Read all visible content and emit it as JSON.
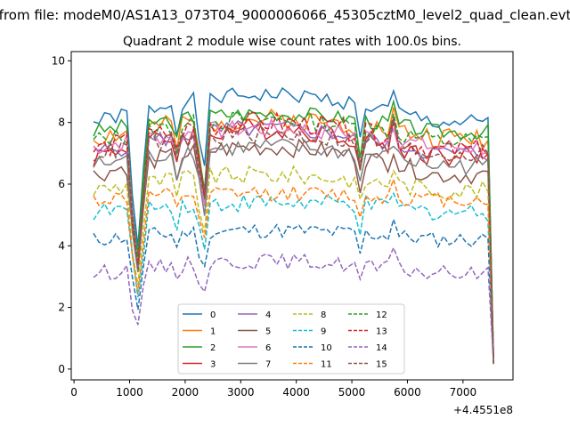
{
  "suptitle": "from file: modeM0/AS1A13_073T04_9000006066_45305cztM0_level2_quad_clean.evt",
  "chart_data": {
    "type": "line",
    "title": "Quadrant 2 module wise count rates with 100.0s bins.",
    "xlabel": "",
    "ylabel": "",
    "x_offset_label": "+4.4551e8",
    "xlim": [
      -50,
      7900
    ],
    "ylim": [
      -0.35,
      10.3
    ],
    "x_ticks": [
      0,
      1000,
      2000,
      3000,
      4000,
      5000,
      6000,
      7000
    ],
    "y_ticks": [
      0,
      2,
      4,
      6,
      8,
      10
    ],
    "x_start": 350,
    "x_step": 100,
    "x_end_final": 7550,
    "legend": {
      "position": "lower-center",
      "ncol": 4
    },
    "series": [
      {
        "name": "0",
        "color": "#1f77b4",
        "dash": "solid",
        "base": 8.0,
        "amp": 0.25,
        "rise": 0.9,
        "seed": 1
      },
      {
        "name": "1",
        "color": "#ff7f0e",
        "dash": "solid",
        "base": 7.5,
        "amp": 0.35,
        "rise": 0.6,
        "seed": 2
      },
      {
        "name": "2",
        "color": "#2ca02c",
        "dash": "solid",
        "base": 7.7,
        "amp": 0.25,
        "rise": 0.6,
        "seed": 3
      },
      {
        "name": "3",
        "color": "#d62728",
        "dash": "solid",
        "base": 6.9,
        "amp": 0.35,
        "rise": 0.9,
        "seed": 4
      },
      {
        "name": "4",
        "color": "#9467bd",
        "dash": "solid",
        "base": 7.0,
        "amp": 0.3,
        "rise": 0.8,
        "seed": 5
      },
      {
        "name": "5",
        "color": "#8c564b",
        "dash": "solid",
        "base": 6.3,
        "amp": 0.3,
        "rise": 0.9,
        "seed": 6
      },
      {
        "name": "6",
        "color": "#e377c2",
        "dash": "solid",
        "base": 7.2,
        "amp": 0.3,
        "rise": 0.6,
        "seed": 7
      },
      {
        "name": "7",
        "color": "#7f7f7f",
        "dash": "solid",
        "base": 6.6,
        "amp": 0.3,
        "rise": 0.6,
        "seed": 8
      },
      {
        "name": "8",
        "color": "#bcbd22",
        "dash": "dashed",
        "base": 5.8,
        "amp": 0.3,
        "rise": 0.5,
        "seed": 9
      },
      {
        "name": "9",
        "color": "#17becf",
        "dash": "dashed",
        "base": 5.1,
        "amp": 0.3,
        "rise": 0.3,
        "seed": 10
      },
      {
        "name": "10",
        "color": "#1f77b4",
        "dash": "dashed",
        "base": 4.2,
        "amp": 0.25,
        "rise": 0.3,
        "seed": 11
      },
      {
        "name": "11",
        "color": "#ff7f0e",
        "dash": "dashed",
        "base": 5.5,
        "amp": 0.25,
        "rise": 0.2,
        "seed": 12
      },
      {
        "name": "12",
        "color": "#2ca02c",
        "dash": "dashed",
        "base": 7.4,
        "amp": 0.3,
        "rise": 0.7,
        "seed": 13
      },
      {
        "name": "13",
        "color": "#d62728",
        "dash": "dashed",
        "base": 7.1,
        "amp": 0.35,
        "rise": 0.9,
        "seed": 14
      },
      {
        "name": "14",
        "color": "#9467bd",
        "dash": "dashed",
        "base": 3.1,
        "amp": 0.25,
        "rise": 0.4,
        "seed": 15
      },
      {
        "name": "15",
        "color": "#8c564b",
        "dash": "dashed",
        "base": 7.0,
        "amp": 0.3,
        "rise": 0.6,
        "seed": 16
      }
    ]
  }
}
